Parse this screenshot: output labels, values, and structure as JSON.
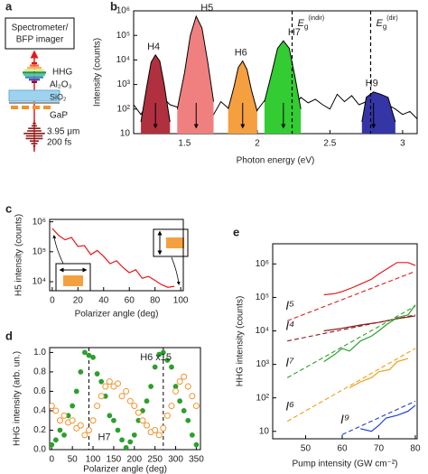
{
  "diagram": {
    "panel": "a",
    "box": [
      "Spectrometer/",
      "BFP imager"
    ],
    "hhg": "HHG",
    "layers": [
      "Al₂O₃",
      "SiO₂",
      "GaP"
    ],
    "pulse": [
      "3.95 μm",
      "200 fs"
    ]
  },
  "chart_data": [
    {
      "panel": "b",
      "type": "area",
      "xlabel": "Photon energy (eV)",
      "ylabel": "Intensity (counts)",
      "xlim": [
        1.15,
        3.1
      ],
      "xticks": [
        1.5,
        2,
        2.5,
        3
      ],
      "ylim": [
        10,
        1000000
      ],
      "yticks": [
        10,
        {
          "value": 100,
          "label": "10²"
        },
        {
          "value": 1000,
          "label": "10³"
        },
        {
          "value": 10000,
          "label": "10⁴"
        },
        {
          "value": 100000,
          "label": "10⁵"
        },
        {
          "value": 1000000,
          "label": "10⁶"
        }
      ],
      "log_y": true,
      "color": "#000000",
      "x": [
        1.15,
        1.2,
        1.25,
        1.3,
        1.35,
        1.4,
        1.45,
        1.5,
        1.55,
        1.6,
        1.65,
        1.7,
        1.75,
        1.8,
        1.85,
        1.9,
        1.95,
        2,
        2.05,
        2.1,
        2.15,
        2.2,
        2.25,
        2.3,
        2.35,
        2.4,
        2.45,
        2.5,
        2.55,
        2.6,
        2.65,
        2.7,
        2.75,
        2.8,
        2.85,
        2.9,
        2.95,
        3,
        3.05,
        3.1
      ],
      "values": [
        150,
        60,
        200,
        100,
        300,
        150,
        120,
        90,
        250,
        180,
        140,
        60,
        200,
        110,
        300,
        100,
        160,
        90,
        220,
        150,
        400,
        200,
        120,
        300,
        180,
        250,
        150,
        100,
        400,
        200,
        350,
        150,
        200,
        120,
        300,
        150,
        100,
        60,
        80,
        40
      ],
      "series": [
        {
          "name": "H4",
          "color": "#b03040",
          "x": [
            1.2,
            1.24,
            1.27,
            1.3,
            1.33,
            1.36,
            1.4
          ],
          "values": [
            30,
            800,
            8000,
            16000,
            9000,
            1000,
            30
          ]
        },
        {
          "name": "H5",
          "color": "#f08080",
          "x": [
            1.45,
            1.5,
            1.54,
            1.58,
            1.62,
            1.66,
            1.7
          ],
          "values": [
            100,
            3000,
            100000,
            600000,
            200000,
            8000,
            200
          ]
        },
        {
          "name": "H6",
          "color": "#f5a040",
          "x": [
            1.8,
            1.84,
            1.87,
            1.9,
            1.93,
            1.96,
            2.0
          ],
          "values": [
            100,
            800,
            5000,
            9000,
            4000,
            600,
            80
          ]
        },
        {
          "name": "H7",
          "color": "#33cc33",
          "x": [
            2.05,
            2.1,
            2.14,
            2.18,
            2.22,
            2.26,
            2.3
          ],
          "values": [
            200,
            3000,
            30000,
            60000,
            30000,
            2000,
            100
          ]
        },
        {
          "name": "H9",
          "color": "#3535a5",
          "x": [
            2.72,
            2.75,
            2.8,
            2.85,
            2.9,
            2.95
          ],
          "values": [
            30,
            300,
            500,
            400,
            300,
            30
          ]
        }
      ],
      "vlines": [
        {
          "x": 2.24,
          "symbol": "E",
          "sub": "g",
          "sup": "(indir)"
        },
        {
          "x": 2.78,
          "symbol": "E",
          "sub": "g",
          "sup": "(dir)"
        }
      ]
    },
    {
      "panel": "c",
      "type": "line",
      "xlabel": "Polarizer angle (deg)",
      "ylabel": "H5 intensity (counts)",
      "xlim": [
        -2,
        102
      ],
      "xticks": [
        0,
        20,
        40,
        60,
        80,
        100
      ],
      "ylim": [
        5000,
        1200000
      ],
      "yticks": [
        {
          "value": 10000,
          "label": "10⁴"
        },
        {
          "value": 100000,
          "label": "10⁵"
        },
        {
          "value": 1000000,
          "label": "10⁶"
        }
      ],
      "log_y": true,
      "color": "#e41a1c",
      "x": [
        0,
        5,
        10,
        15,
        20,
        25,
        30,
        35,
        40,
        45,
        50,
        55,
        60,
        65,
        70,
        75,
        80,
        85,
        90,
        95
      ],
      "values": [
        600000,
        350000,
        250000,
        300000,
        150000,
        160000,
        80000,
        110000,
        70000,
        40000,
        50000,
        30000,
        20000,
        25000,
        13000,
        15000,
        11000,
        8000,
        6500,
        7000
      ]
    },
    {
      "panel": "d",
      "type": "scatter",
      "xlabel": "Polarizer angle (deg)",
      "ylabel": "HHG intensity (arb. un.)",
      "xlim": [
        -5,
        360
      ],
      "xticks": [
        0,
        50,
        100,
        150,
        200,
        250,
        300,
        350
      ],
      "ylim": [
        0,
        1.05
      ],
      "yticks": [
        {
          "value": 0,
          "label": "0.0"
        },
        0.2,
        0.4,
        0.6,
        0.8,
        {
          "value": 1,
          "label": "1.0"
        }
      ],
      "vlines": [
        90,
        270
      ],
      "series": [
        {
          "name": "H7",
          "color": "#2ca02c",
          "marker": "filled",
          "x": [
            0,
            10,
            20,
            30,
            40,
            50,
            60,
            70,
            80,
            90,
            100,
            110,
            120,
            130,
            140,
            150,
            160,
            170,
            180,
            190,
            200,
            210,
            220,
            230,
            240,
            250,
            260,
            270,
            280,
            290,
            300,
            310,
            320,
            330,
            340,
            350
          ],
          "values": [
            0.05,
            0.1,
            0.2,
            0.15,
            0.35,
            0.45,
            0.6,
            0.8,
            1,
            0.97,
            0.95,
            0.78,
            0.7,
            0.55,
            0.35,
            0.3,
            0.2,
            0.1,
            0.02,
            0.08,
            0.15,
            0.3,
            0.4,
            0.5,
            0.65,
            0.85,
            0.98,
            1,
            0.92,
            0.85,
            0.65,
            0.5,
            0.4,
            0.3,
            0.15,
            0.05
          ]
        },
        {
          "name": "H6 x15",
          "color": "#f0932b",
          "marker": "open",
          "x": [
            0,
            10,
            20,
            30,
            40,
            50,
            60,
            70,
            80,
            90,
            100,
            110,
            120,
            130,
            140,
            150,
            160,
            170,
            180,
            190,
            200,
            210,
            220,
            230,
            240,
            250,
            260,
            270,
            280,
            290,
            300,
            310,
            320,
            330,
            340,
            350
          ],
          "values": [
            0.45,
            0.4,
            0.3,
            0.35,
            0.28,
            0.3,
            0.22,
            0.25,
            0.15,
            0.2,
            0.3,
            0.45,
            0.55,
            0.65,
            0.7,
            0.65,
            0.68,
            0.55,
            0.6,
            0.5,
            0.45,
            0.38,
            0.3,
            0.25,
            0.18,
            0.2,
            0.15,
            0.22,
            0.35,
            0.45,
            0.6,
            0.7,
            0.75,
            0.65,
            0.55,
            0.45
          ]
        }
      ]
    },
    {
      "panel": "e",
      "type": "line",
      "xlabel": "Pump intensity (GW cm⁻²)",
      "ylabel": "HHG intensity (counts)",
      "xlim": [
        41,
        80.5
      ],
      "xticks": [
        50,
        60,
        70,
        80
      ],
      "ylim": [
        6,
        4000000
      ],
      "yticks": [
        10,
        {
          "value": 100,
          "label": "10²"
        },
        {
          "value": 1000,
          "label": "10³"
        },
        {
          "value": 10000,
          "label": "10⁴"
        },
        {
          "value": 100000,
          "label": "10⁵"
        },
        {
          "value": 1000000,
          "label": "10⁶"
        }
      ],
      "log_y": true,
      "series": [
        {
          "name": "I⁵",
          "color": "#e41a1c",
          "x": [
            55,
            58,
            60,
            63,
            65,
            68,
            70,
            73,
            75,
            78,
            80
          ],
          "values": [
            120000,
            130000,
            150000,
            200000,
            250000,
            350000,
            500000,
            800000,
            1100000,
            1100000,
            900000
          ],
          "fit_x": [
            45,
            80
          ],
          "fit": [
            20000,
            600000
          ]
        },
        {
          "name": "I⁴",
          "color": "#8b1a1a",
          "x": [
            55,
            60,
            65,
            70,
            75,
            80
          ],
          "values": [
            10000,
            12000,
            15000,
            18000,
            23000,
            28000
          ],
          "fit_x": [
            45,
            80
          ],
          "fit": [
            5000,
            30000
          ]
        },
        {
          "name": "I⁷",
          "color": "#2ca02c",
          "x": [
            55,
            58,
            60,
            62,
            65,
            68,
            70,
            72,
            75,
            78,
            80
          ],
          "values": [
            1200,
            2000,
            3000,
            2500,
            5000,
            7000,
            10000,
            15000,
            25000,
            30000,
            60000
          ],
          "fit_x": [
            45,
            80
          ],
          "fit": [
            400,
            55000
          ]
        },
        {
          "name": "I⁶",
          "color": "#f39c12",
          "x": [
            62,
            65,
            68,
            70,
            73,
            75,
            78
          ],
          "values": [
            200,
            300,
            400,
            600,
            700,
            1200,
            1500
          ],
          "fit_x": [
            45,
            80
          ],
          "fit": [
            20,
            3000
          ]
        },
        {
          "name": "I⁹",
          "color": "#1f3fcf",
          "x": [
            65,
            68,
            70,
            72,
            75,
            78,
            80
          ],
          "values": [
            12,
            10,
            15,
            25,
            30,
            40,
            60
          ],
          "fit_x": [
            60,
            80
          ],
          "fit": [
            8,
            80
          ]
        }
      ]
    }
  ]
}
